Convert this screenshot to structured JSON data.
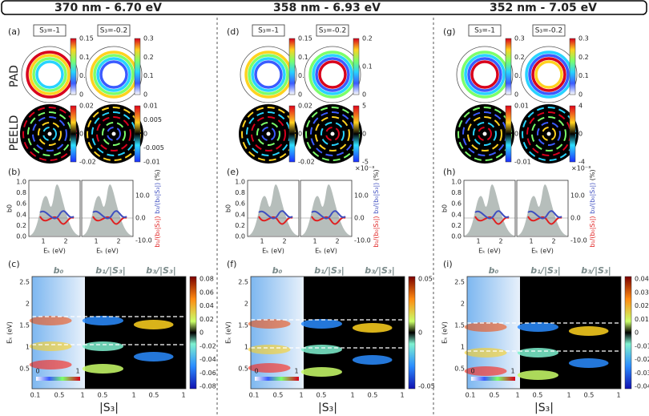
{
  "row_labels": [
    "PAD",
    "PEELD"
  ],
  "columns": [
    {
      "header": "370 nm - 6.70 eV",
      "panels": [
        "(a)",
        "(b)",
        "(c)"
      ],
      "pad_tags": [
        "S₃=-1",
        "S₃=-0.2"
      ],
      "pad_colorbars": [
        {
          "ticks": [
            "0.15",
            "0.1",
            "0.05",
            "0"
          ]
        },
        {
          "ticks": [
            "0.3",
            "0.2",
            "0.1",
            "0"
          ]
        }
      ],
      "peeld_colorbars": [
        {
          "ticks": [
            "0.02",
            "0",
            "-0.02"
          ]
        },
        {
          "ticks": [
            "0.01",
            "0.005",
            "0",
            "-0.005",
            "-0.01"
          ]
        }
      ],
      "lineouts": {
        "left_yticks": [
          "1.0",
          "0.8",
          "0.6",
          "0.4",
          "0.2",
          "0.0"
        ],
        "left_label": "b0",
        "xticks": [
          "1",
          "2"
        ],
        "xlabel": "Eₖ (eV)",
        "right_yticks": [
          "10.0",
          "0.0",
          "-10.0"
        ],
        "right_label_b1": "b₁/(b₀|S₃|)",
        "right_label_b3": "b₃/(b₀|S₃|)",
        "right_label_unit": "(%)"
      },
      "maps": {
        "titles": [
          "b₀",
          "b₁/|S₃|",
          "b₃/|S₃|"
        ],
        "yticks": [
          "2.5",
          "2",
          "1.5",
          "1",
          "0.5"
        ],
        "ylabel": "Eₖ (eV)",
        "xticks": [
          [
            "0.1",
            "0.5",
            "1"
          ],
          [
            "0.5",
            "1"
          ],
          [
            "0.5",
            "1"
          ]
        ],
        "xlabel": "|S₃|",
        "colorbar": [
          "0.08",
          "0.06",
          "0.04",
          "0.02",
          "0",
          "-0.02",
          "-0.04",
          "-0.06",
          "-0.08"
        ],
        "inset": [
          "0",
          "1"
        ]
      }
    },
    {
      "header": "358 nm - 6.93 eV",
      "panels": [
        "(d)",
        "(e)",
        "(f)"
      ],
      "pad_tags": [
        "S₃=-1",
        "S₃=-0.2"
      ],
      "pad_colorbars": [
        {
          "ticks": [
            "0.15",
            "0.1",
            "0.05",
            "0"
          ]
        },
        {
          "ticks": [
            "0.2",
            "0.1",
            "0"
          ]
        }
      ],
      "peeld_colorbars": [
        {
          "ticks": [
            "0.02",
            "0",
            "-0.02"
          ]
        },
        {
          "exponent": "×10⁻³",
          "ticks": [
            "5",
            "0",
            "-5"
          ]
        }
      ],
      "lineouts": {
        "left_yticks": [
          "1.0",
          "0.8",
          "0.6",
          "0.4",
          "0.2",
          "0.0"
        ],
        "left_label": "b0",
        "xticks": [
          "1",
          "2"
        ],
        "xlabel": "Eₖ (eV)",
        "right_yticks": [
          "10.0",
          "0.0",
          "-10.0"
        ],
        "right_label_b1": "b₁/(b₀|S₃|)",
        "right_label_b3": "b₃/(b₀|S₃|)",
        "right_label_unit": "(%)"
      },
      "maps": {
        "titles": [
          "b₀",
          "b₁/|S₃|",
          "b₃/|S₃|"
        ],
        "yticks": [
          "2.5",
          "2",
          "1.5",
          "1",
          "0.5"
        ],
        "ylabel": "Eₖ (eV)",
        "xticks": [
          [
            "0.1",
            "0.5",
            "1"
          ],
          [
            "0.5",
            "1"
          ],
          [
            "0.5",
            "1"
          ]
        ],
        "xlabel": "|S₃|",
        "colorbar": [
          "0.05",
          "0",
          "-0.05"
        ],
        "inset": [
          "0",
          "1"
        ]
      }
    },
    {
      "header": "352 nm - 7.05 eV",
      "panels": [
        "(g)",
        "(h)",
        "(i)"
      ],
      "pad_tags": [
        "S₃=-1",
        "S₃=-0.2"
      ],
      "pad_colorbars": [
        {
          "ticks": [
            "0.3",
            "0.2",
            "0.1",
            "0"
          ]
        },
        {
          "ticks": [
            "0.3",
            "0.2",
            "0.1",
            "0"
          ]
        }
      ],
      "peeld_colorbars": [
        {
          "ticks": [
            "0.01",
            "0",
            "-0.01"
          ]
        },
        {
          "exponent": "×10⁻³",
          "ticks": [
            "4",
            "0",
            "-4"
          ]
        }
      ],
      "lineouts": {
        "left_yticks": [
          "1.0",
          "0.8",
          "0.6",
          "0.4",
          "0.2",
          "0.0"
        ],
        "left_label": "b0",
        "xticks": [
          "1",
          "2"
        ],
        "xlabel": "Eₖ (eV)",
        "right_yticks": [
          "10.0",
          "0.0",
          "-10.0"
        ],
        "right_label_b1": "b₁/(b₀|S₃|)",
        "right_label_b3": "b₃/(b₀|S₃|)",
        "right_label_unit": "(%)"
      },
      "maps": {
        "titles": [
          "b₀",
          "b₁/|S₃|",
          "b₃/|S₃|"
        ],
        "yticks": [
          "2.5",
          "2",
          "1.5",
          "1",
          "0.5"
        ],
        "ylabel": "Eₖ (eV)",
        "xticks": [
          [
            "0.1",
            "0.5",
            "1"
          ],
          [
            "0.5",
            "1"
          ],
          [
            "0.5",
            "1"
          ]
        ],
        "xlabel": "|S₃|",
        "colorbar": [
          "0.04",
          "0.03",
          "0.02",
          "0.01",
          "0",
          "-0.01",
          "-0.02",
          "-0.03",
          "-0.04"
        ],
        "inset": [
          "0",
          "1"
        ]
      }
    }
  ]
}
